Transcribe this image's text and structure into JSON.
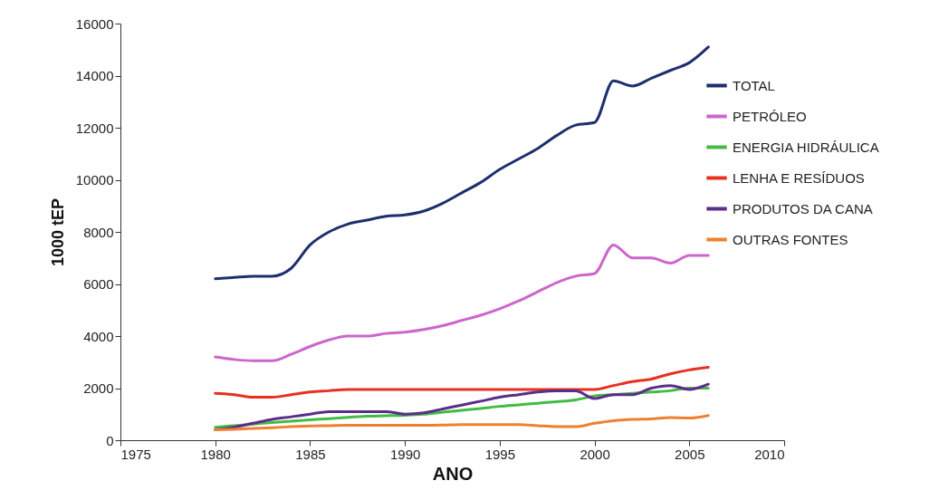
{
  "chart_data": {
    "type": "line",
    "xlabel": "ANO",
    "ylabel": "1000 tEP",
    "x": [
      1980,
      1981,
      1982,
      1983,
      1984,
      1985,
      1986,
      1987,
      1988,
      1989,
      1990,
      1991,
      1992,
      1993,
      1994,
      1995,
      1996,
      1997,
      1998,
      1999,
      2000,
      2001,
      2002,
      2003,
      2004,
      2005,
      2006
    ],
    "xlim": [
      1975,
      2010
    ],
    "xticks": [
      1975,
      1980,
      1985,
      1990,
      1995,
      2000,
      2005,
      2010
    ],
    "ylim": [
      0,
      16000
    ],
    "yticks": [
      0,
      2000,
      4000,
      6000,
      8000,
      10000,
      12000,
      14000,
      16000
    ],
    "grid": false,
    "legend": "top right",
    "marker": "none",
    "line_style": "solid",
    "series": [
      {
        "name": "TOTAL",
        "color": "#1f2f6e",
        "values": [
          6200,
          6250,
          6300,
          6300,
          6600,
          7500,
          8000,
          8300,
          8450,
          8600,
          8650,
          8800,
          9100,
          9500,
          9900,
          10400,
          10800,
          11200,
          11700,
          12100,
          12200,
          13800,
          13600,
          13900,
          14200,
          14500,
          15100
        ]
      },
      {
        "name": "PETRÓLEO",
        "color": "#cc66cc",
        "values": [
          3200,
          3100,
          3050,
          3050,
          3300,
          3600,
          3850,
          4000,
          4000,
          4100,
          4150,
          4250,
          4400,
          4600,
          4800,
          5050,
          5350,
          5700,
          6050,
          6300,
          6400,
          7500,
          7000,
          7000,
          6800,
          7100,
          7100
        ]
      },
      {
        "name": "ENERGIA HIDRÁULICA",
        "color": "#44bb44",
        "values": [
          500,
          560,
          620,
          680,
          730,
          780,
          830,
          880,
          920,
          940,
          960,
          1000,
          1080,
          1150,
          1220,
          1300,
          1360,
          1420,
          1480,
          1550,
          1700,
          1750,
          1800,
          1850,
          1900,
          2000,
          2000
        ]
      },
      {
        "name": "LENHA E RESÍDUOS",
        "color": "#e83020",
        "values": [
          1800,
          1750,
          1650,
          1650,
          1750,
          1850,
          1900,
          1950,
          1950,
          1950,
          1950,
          1950,
          1950,
          1950,
          1950,
          1950,
          1950,
          1950,
          1950,
          1950,
          1950,
          2100,
          2250,
          2350,
          2550,
          2700,
          2800
        ]
      },
      {
        "name": "PRODUTOS DA CANA",
        "color": "#5b2d8a",
        "values": [
          400,
          500,
          650,
          800,
          900,
          1000,
          1100,
          1100,
          1100,
          1100,
          1000,
          1050,
          1200,
          1350,
          1500,
          1650,
          1750,
          1850,
          1900,
          1900,
          1600,
          1750,
          1750,
          2000,
          2100,
          1950,
          2150
        ]
      },
      {
        "name": "OUTRAS FONTES",
        "color": "#f08030",
        "values": [
          400,
          420,
          450,
          480,
          520,
          550,
          560,
          570,
          570,
          570,
          570,
          570,
          580,
          600,
          600,
          600,
          600,
          560,
          520,
          520,
          650,
          750,
          800,
          820,
          870,
          850,
          950
        ]
      }
    ]
  }
}
